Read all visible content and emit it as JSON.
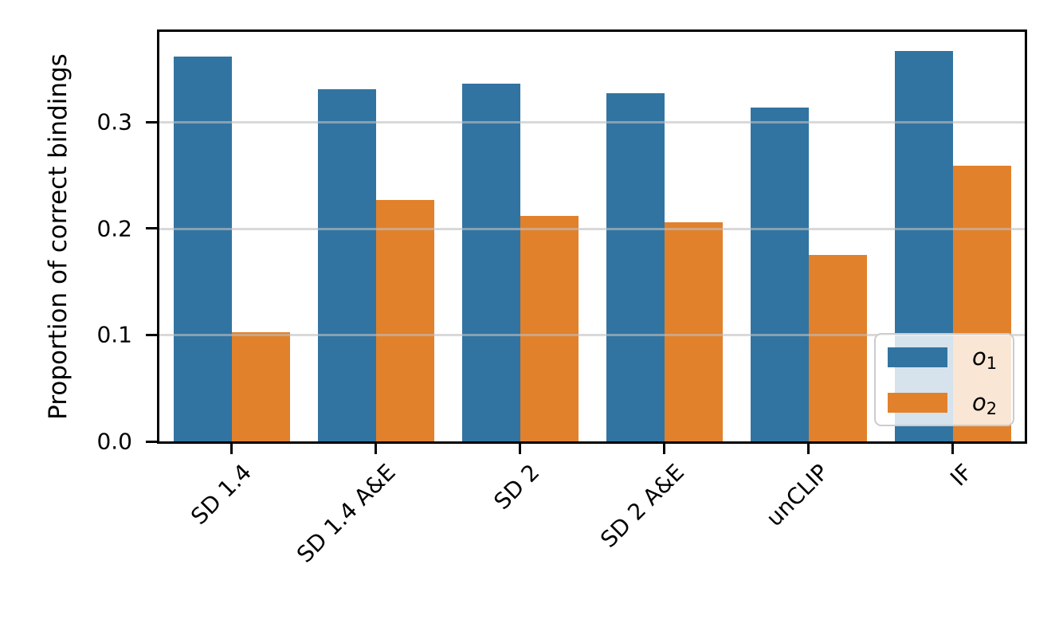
{
  "figure": {
    "background_color": "#ffffff",
    "axis_color": "#000000"
  },
  "chart_data": {
    "type": "bar",
    "title": "",
    "xlabel": "",
    "ylabel": "Proportion of correct bindings",
    "categories": [
      "SD 1.4",
      "SD 1.4 A&E",
      "SD 2",
      "SD 2 A&E",
      "unCLIP",
      "IF"
    ],
    "series": [
      {
        "name": "o1",
        "legend_base": "o",
        "legend_sub": "1",
        "color": "#3274a1",
        "values": [
          0.362,
          0.331,
          0.336,
          0.327,
          0.314,
          0.367
        ]
      },
      {
        "name": "o2",
        "legend_base": "o",
        "legend_sub": "2",
        "color": "#e1812c",
        "values": [
          0.103,
          0.227,
          0.212,
          0.206,
          0.175,
          0.259
        ]
      }
    ],
    "yticks": [
      {
        "label": "0.0",
        "value": 0.0
      },
      {
        "label": "0.1",
        "value": 0.1
      },
      {
        "label": "0.2",
        "value": 0.2
      },
      {
        "label": "0.3",
        "value": 0.3
      }
    ],
    "ylim": [
      0,
      0.385
    ],
    "grid": "horizontal",
    "grid_color": "#c0c0c0",
    "legend_position": "lower right"
  }
}
